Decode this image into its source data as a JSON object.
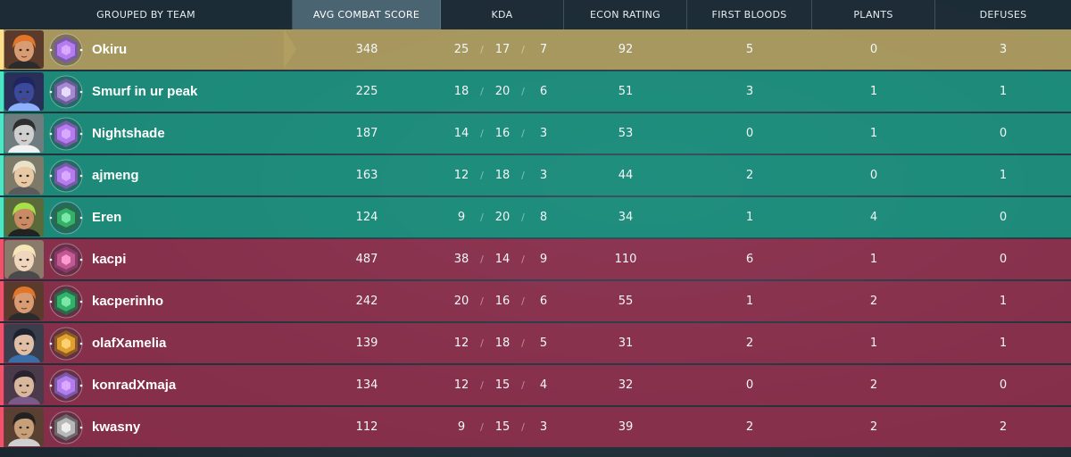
{
  "header": {
    "team": "GROUPED BY TEAM",
    "acs": "AVG COMBAT SCORE",
    "kda": "KDA",
    "econ": "ECON RATING",
    "first_bloods": "FIRST BLOODS",
    "plants": "PLANTS",
    "defuses": "DEFUSES"
  },
  "kda_separator": "/",
  "colors": {
    "ally": "#1c9682",
    "enemy": "#a03050",
    "self": "#b2a062",
    "active_header": "#4a6472"
  },
  "players": [
    {
      "name": "Okiru",
      "team": "self",
      "agent_icon": "agent-portrait-orange-hair",
      "rank_icon": "rank-amethyst-icon",
      "acs": "348",
      "k": "25",
      "d": "17",
      "a": "7",
      "econ": "92",
      "fb": "5",
      "plants": "0",
      "defuses": "3"
    },
    {
      "name": "Smurf in ur peak",
      "team": "ally",
      "agent_icon": "agent-portrait-hooded",
      "rank_icon": "rank-diamond-icon",
      "acs": "225",
      "k": "18",
      "d": "20",
      "a": "6",
      "econ": "51",
      "fb": "3",
      "plants": "1",
      "defuses": "1"
    },
    {
      "name": "Nightshade",
      "team": "ally",
      "agent_icon": "agent-portrait-hat",
      "rank_icon": "rank-amethyst-icon",
      "acs": "187",
      "k": "14",
      "d": "16",
      "a": "3",
      "econ": "53",
      "fb": "0",
      "plants": "1",
      "defuses": "0"
    },
    {
      "name": "ajmeng",
      "team": "ally",
      "agent_icon": "agent-portrait-blonde",
      "rank_icon": "rank-amethyst-icon",
      "acs": "163",
      "k": "12",
      "d": "18",
      "a": "3",
      "econ": "44",
      "fb": "2",
      "plants": "0",
      "defuses": "1"
    },
    {
      "name": "Eren",
      "team": "ally",
      "agent_icon": "agent-portrait-green-hair",
      "rank_icon": "rank-emerald-icon",
      "acs": "124",
      "k": "9",
      "d": "20",
      "a": "8",
      "econ": "34",
      "fb": "1",
      "plants": "4",
      "defuses": "0"
    },
    {
      "name": "kacpi",
      "team": "enemy",
      "agent_icon": "agent-portrait-blonde-long",
      "rank_icon": "rank-star-icon",
      "acs": "487",
      "k": "38",
      "d": "14",
      "a": "9",
      "econ": "110",
      "fb": "6",
      "plants": "1",
      "defuses": "0"
    },
    {
      "name": "kacperinho",
      "team": "enemy",
      "agent_icon": "agent-portrait-orange-hair",
      "rank_icon": "rank-emerald-icon",
      "acs": "242",
      "k": "20",
      "d": "16",
      "a": "6",
      "econ": "55",
      "fb": "1",
      "plants": "2",
      "defuses": "1"
    },
    {
      "name": "olafXamelia",
      "team": "enemy",
      "agent_icon": "agent-portrait-dark-hair",
      "rank_icon": "rank-gold-icon",
      "acs": "139",
      "k": "12",
      "d": "18",
      "a": "5",
      "econ": "31",
      "fb": "2",
      "plants": "1",
      "defuses": "1"
    },
    {
      "name": "konradXmaja",
      "team": "enemy",
      "agent_icon": "agent-portrait-dark-long",
      "rank_icon": "rank-amethyst-icon",
      "acs": "134",
      "k": "12",
      "d": "15",
      "a": "4",
      "econ": "32",
      "fb": "0",
      "plants": "2",
      "defuses": "0"
    },
    {
      "name": "kwasny",
      "team": "enemy",
      "agent_icon": "agent-portrait-bandana",
      "rank_icon": "rank-silver-icon",
      "acs": "112",
      "k": "9",
      "d": "15",
      "a": "3",
      "econ": "39",
      "fb": "2",
      "plants": "2",
      "defuses": "2"
    }
  ]
}
